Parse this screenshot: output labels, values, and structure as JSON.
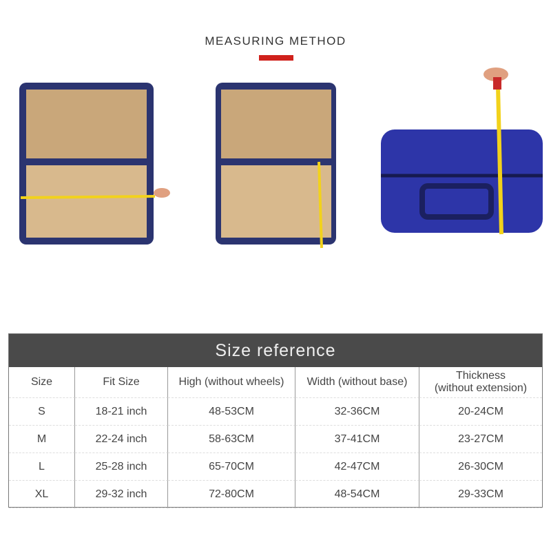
{
  "heading": "MEASURING METHOD",
  "accent_color": "#d0211c",
  "table": {
    "title": "Size reference",
    "columns": [
      "Size",
      "Fit Size",
      "High (without wheels)",
      "Width (without base)",
      "Thickness\n(without extension)"
    ],
    "rows": [
      [
        "S",
        "18-21 inch",
        "48-53CM",
        "32-36CM",
        "20-24CM"
      ],
      [
        "M",
        "22-24 inch",
        "58-63CM",
        "37-41CM",
        "23-27CM"
      ],
      [
        "L",
        "25-28 inch",
        "65-70CM",
        "42-47CM",
        "26-30CM"
      ],
      [
        "XL",
        "29-32 inch",
        "72-80CM",
        "48-54CM",
        "29-33CM"
      ]
    ]
  }
}
